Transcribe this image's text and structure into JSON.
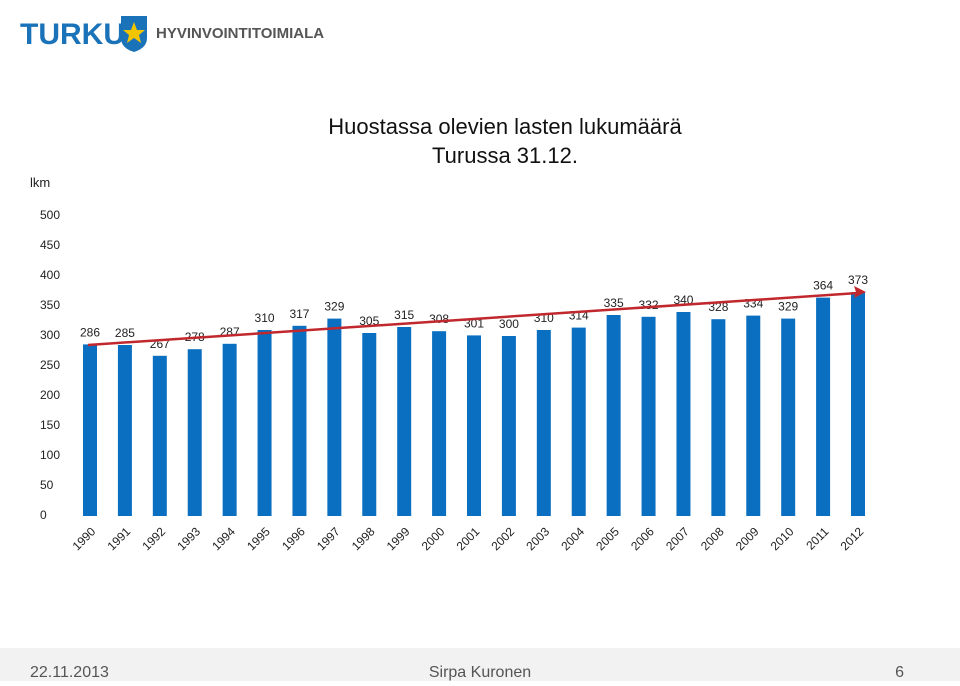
{
  "header": {
    "brand": "TURKU",
    "division": "HYVINVOINTITOIMIALA"
  },
  "chart_data": {
    "type": "bar",
    "title": "Huostassa olevien lasten lukumäärä",
    "subtitle": "Turussa 31.12.",
    "y_label": "lkm",
    "categories": [
      "1990",
      "1991",
      "1992",
      "1993",
      "1994",
      "1995",
      "1996",
      "1997",
      "1998",
      "1999",
      "2000",
      "2001",
      "2002",
      "2003",
      "2004",
      "2005",
      "2006",
      "2007",
      "2008",
      "2009",
      "2010",
      "2011",
      "2012"
    ],
    "values": [
      286,
      285,
      267,
      278,
      287,
      310,
      317,
      329,
      305,
      315,
      308,
      301,
      300,
      310,
      314,
      335,
      332,
      340,
      328,
      334,
      329,
      364,
      373
    ],
    "color": "#0b6fc1",
    "ylim": [
      0,
      500
    ],
    "yticks": [
      0,
      50,
      100,
      150,
      200,
      250,
      300,
      350,
      400,
      450,
      500
    ],
    "grid": false
  },
  "footer": {
    "date": "22.11.2013",
    "author": "Sirpa Kuronen",
    "page": 6
  }
}
